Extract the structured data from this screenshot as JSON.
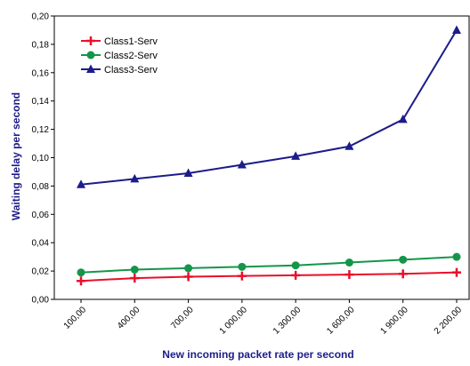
{
  "chart_data": {
    "type": "line",
    "x": [
      "100,00",
      "400,00",
      "700,00",
      "1 000,00",
      "1 300,00",
      "1 600,00",
      "1 900,00",
      "2 200,00"
    ],
    "series": [
      {
        "name": "Class1-Serv",
        "color": "#e8102a",
        "marker": "plus",
        "values": [
          0.013,
          0.015,
          0.016,
          0.0165,
          0.017,
          0.0175,
          0.018,
          0.019
        ]
      },
      {
        "name": "Class2-Serv",
        "color": "#14964a",
        "marker": "circle",
        "values": [
          0.019,
          0.021,
          0.022,
          0.023,
          0.024,
          0.026,
          0.028,
          0.03
        ]
      },
      {
        "name": "Class3-Serv",
        "color": "#1c1c8a",
        "marker": "triangle",
        "values": [
          0.081,
          0.085,
          0.089,
          0.095,
          0.101,
          0.108,
          0.127,
          0.19
        ]
      }
    ],
    "y_ticks": [
      "0,00",
      "0,02",
      "0,04",
      "0,06",
      "0,08",
      "0,10",
      "0,12",
      "0,14",
      "0,16",
      "0,18",
      "0,20"
    ],
    "ylim": [
      0,
      0.2
    ],
    "xlabel": "New incoming packet rate per second",
    "ylabel": "Waiting delay per second",
    "title": "",
    "grid": false,
    "legend_position": "top-left"
  }
}
